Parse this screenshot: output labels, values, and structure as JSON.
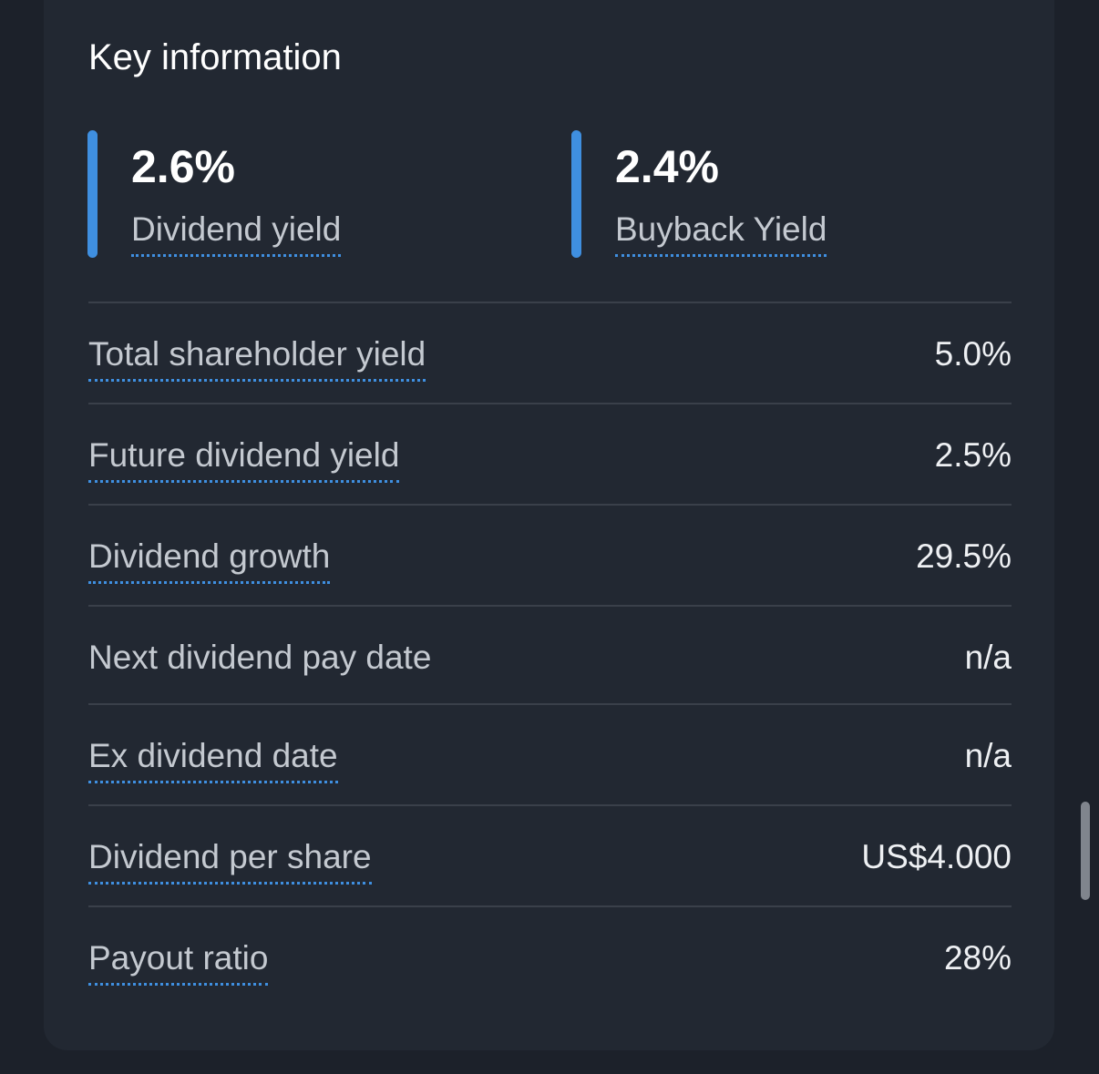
{
  "section": {
    "title": "Key information"
  },
  "kpis": [
    {
      "value": "2.6%",
      "label": "Dividend yield",
      "accent": "#3f8fe0"
    },
    {
      "value": "2.4%",
      "label": "Buyback Yield",
      "accent": "#3f8fe0"
    }
  ],
  "rows": [
    {
      "label": "Total shareholder yield",
      "value": "5.0%",
      "dotted": true
    },
    {
      "label": "Future dividend yield",
      "value": "2.5%",
      "dotted": true
    },
    {
      "label": "Dividend growth",
      "value": "29.5%",
      "dotted": true
    },
    {
      "label": "Next dividend pay date",
      "value": "n/a",
      "dotted": false
    },
    {
      "label": "Ex dividend date",
      "value": "n/a",
      "dotted": true
    },
    {
      "label": "Dividend per share",
      "value": "US$4.000",
      "dotted": true
    },
    {
      "label": "Payout ratio",
      "value": "28%",
      "dotted": true
    }
  ],
  "colors": {
    "background": "#1c212a",
    "card": "#222832",
    "accent": "#3f8fe0",
    "divider": "#3a404a"
  }
}
